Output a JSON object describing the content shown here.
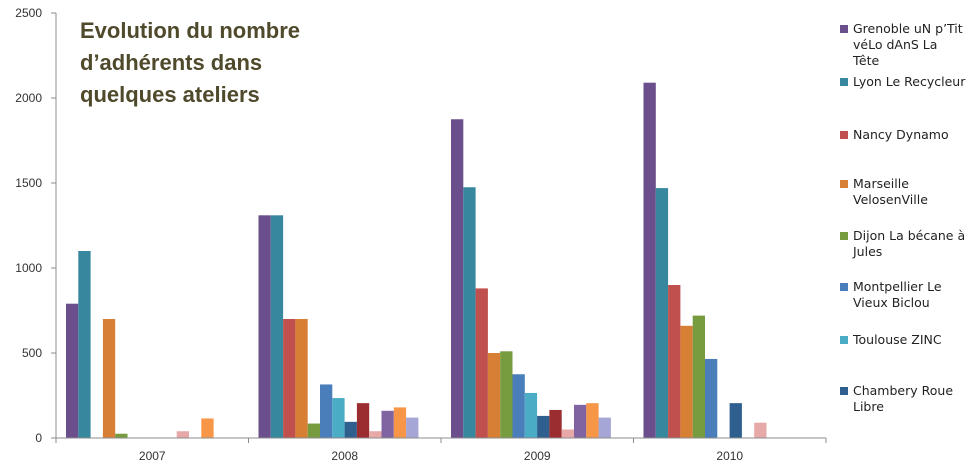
{
  "chart_data": {
    "type": "bar",
    "title_lines": [
      "Evolution du nombre",
      "d’adhérents dans",
      "quelques ateliers"
    ],
    "categories": [
      "2007",
      "2008",
      "2009",
      "2010"
    ],
    "ylim": [
      0,
      2500
    ],
    "yticks": [
      "0",
      "500",
      "1000",
      "1500",
      "2000",
      "2500"
    ],
    "grid": false,
    "legend_position": "right",
    "series": [
      {
        "name": "Grenoble uN p’Tit véLo dAnS La Tête",
        "legend_lines": [
          "Grenoble uN p’Tit",
          "véLo dAnS La",
          "Tête"
        ],
        "color": "#6a4f8c",
        "values": [
          790,
          1310,
          1875,
          2090
        ]
      },
      {
        "name": "Lyon Le Recycleur",
        "legend_lines": [
          "Lyon Le Recycleur"
        ],
        "color": "#37879f",
        "values": [
          1100,
          1310,
          1475,
          1470
        ]
      },
      {
        "name": "Nancy Dynamo",
        "legend_lines": [
          "Nancy Dynamo"
        ],
        "color": "#c0504d",
        "values": [
          0,
          700,
          880,
          900
        ]
      },
      {
        "name": "Marseille VelosenVille",
        "legend_lines": [
          "Marseille",
          "VelosenVille"
        ],
        "color": "#d77f35",
        "values": [
          700,
          700,
          500,
          660
        ]
      },
      {
        "name": "Dijon La bécane à Jules",
        "legend_lines": [
          "Dijon La bécane à",
          "Jules"
        ],
        "color": "#779b3f",
        "values": [
          25,
          85,
          510,
          720
        ]
      },
      {
        "name": "Montpellier Le Vieux Biclou",
        "legend_lines": [
          "Montpellier Le",
          "Vieux Biclou"
        ],
        "color": "#4a7ebb",
        "values": [
          0,
          315,
          375,
          465
        ]
      },
      {
        "name": "Toulouse ZINC",
        "legend_lines": [
          "Toulouse ZINC"
        ],
        "color": "#4bacc6",
        "values": [
          0,
          235,
          265,
          0
        ]
      },
      {
        "name": "Chambery Roue Libre",
        "legend_lines": [
          "Chambery Roue",
          "Libre"
        ],
        "color": "#2e5f8f",
        "values": [
          0,
          95,
          130,
          205
        ]
      },
      {
        "name": "",
        "legend_lines": [],
        "color": "#9b2d30",
        "values": [
          0,
          205,
          165,
          0
        ]
      },
      {
        "name": "",
        "legend_lines": [],
        "color": "#e6a9a8",
        "values": [
          40,
          40,
          50,
          90
        ]
      },
      {
        "name": "",
        "legend_lines": [],
        "color": "#8064a2",
        "values": [
          0,
          160,
          195,
          0
        ]
      },
      {
        "name": "",
        "legend_lines": [],
        "color": "#f79646",
        "values": [
          115,
          180,
          205,
          0
        ]
      },
      {
        "name": "",
        "legend_lines": [],
        "color": "#a5a5d6",
        "values": [
          0,
          120,
          120,
          0
        ]
      }
    ]
  }
}
